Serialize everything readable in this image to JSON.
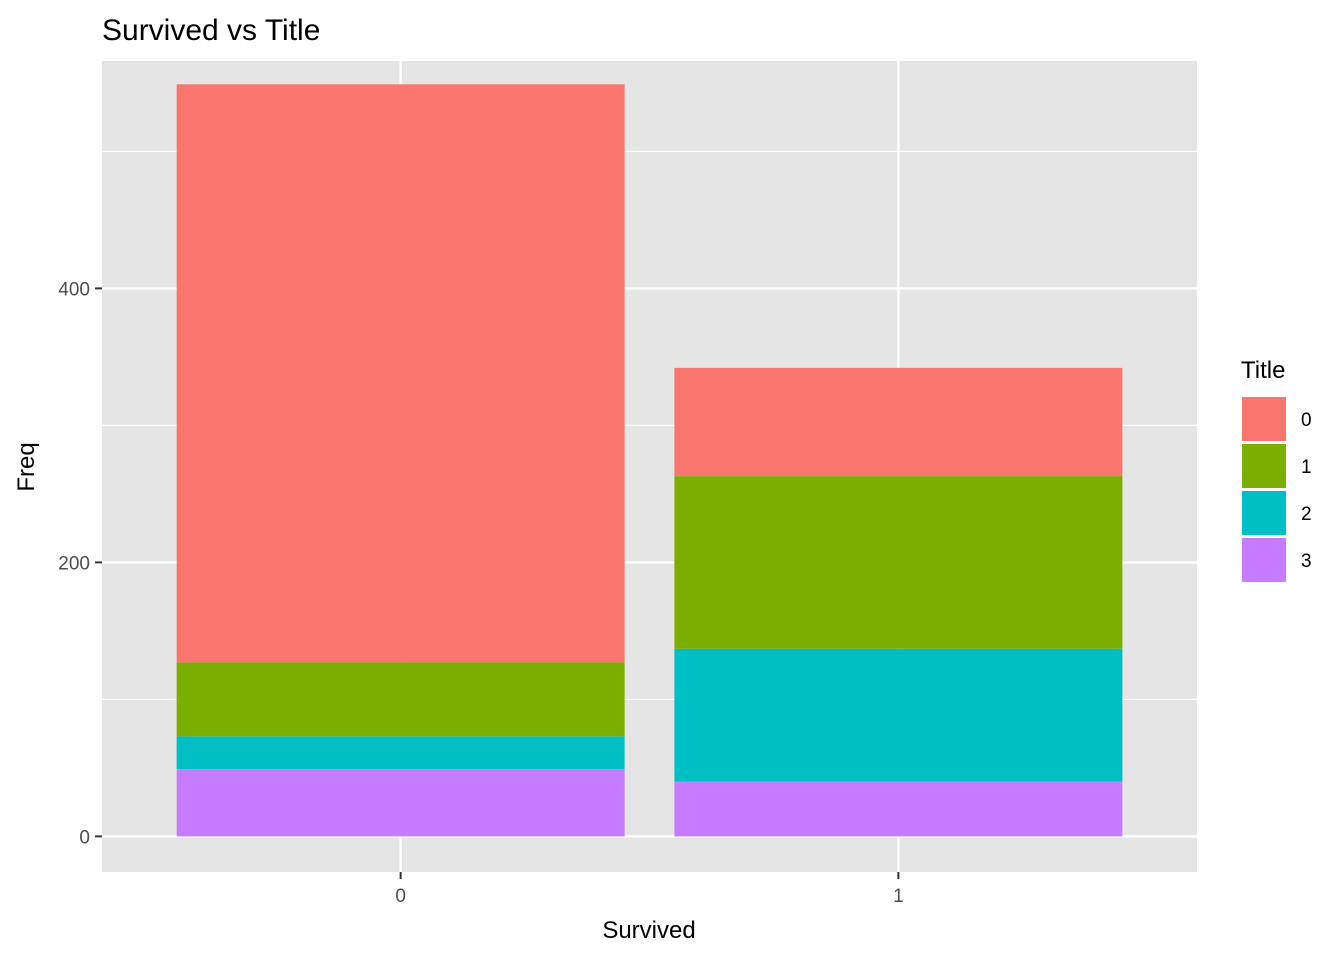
{
  "chart_data": {
    "type": "bar",
    "stacked": true,
    "title": "Survived vs Title",
    "xlabel": "Survived",
    "ylabel": "Freq",
    "categories": [
      "0",
      "1"
    ],
    "ylim": [
      -26,
      566
    ],
    "yticks": [
      0,
      200,
      400
    ],
    "ytick_labels": [
      "0",
      "200",
      "400"
    ],
    "grid": true,
    "panel_background": "#E5E5E5",
    "legend": {
      "title": "Title",
      "placement": "right",
      "entries": [
        "0",
        "1",
        "2",
        "3"
      ]
    },
    "series": [
      {
        "name": "0",
        "color": "#F8766D",
        "values": [
          422,
          79
        ]
      },
      {
        "name": "1",
        "color": "#7CAE00",
        "values": [
          54,
          126
        ]
      },
      {
        "name": "2",
        "color": "#00BFC4",
        "values": [
          24,
          97
        ]
      },
      {
        "name": "3",
        "color": "#C77CFF",
        "values": [
          49,
          40
        ]
      }
    ]
  }
}
